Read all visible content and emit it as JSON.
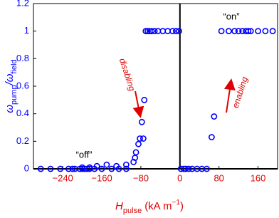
{
  "chart_data": {
    "type": "scatter",
    "xlabel": {
      "main": "H",
      "sub": "pulse",
      "unit": "(kA m",
      "sup": "−1",
      "close": ")"
    },
    "ylabel": {
      "num": "ω",
      "num_sub": "pump",
      "slash": "/ω",
      "den_sub": "field"
    },
    "annotations": [
      "“off”",
      "“on”",
      "disabling",
      "enabling"
    ],
    "x": [
      -285,
      -265,
      -245,
      -228,
      -220,
      -215,
      -205,
      -200,
      -195,
      -190,
      -185,
      -175,
      -160,
      -140,
      -125,
      -110,
      -200,
      -185,
      -170,
      -150,
      -130,
      -110,
      -95,
      -92,
      -90,
      -85,
      -82,
      -78,
      -75,
      -73,
      -70,
      -66,
      -62,
      -58,
      -52,
      -45,
      -35,
      -25,
      -15,
      -8,
      -2,
      2,
      8,
      12,
      18,
      25,
      35,
      45,
      55,
      65,
      70,
      85,
      100,
      112,
      120,
      128,
      135,
      140,
      145,
      160,
      175,
      190
    ],
    "y": [
      0,
      0,
      0,
      0,
      0,
      0,
      0,
      0,
      0,
      0,
      0,
      0,
      0,
      0,
      0,
      0,
      0.01,
      0.01,
      0.02,
      0.03,
      0.02,
      0.03,
      0.05,
      0.08,
      0.12,
      0.18,
      0.22,
      0.34,
      0.22,
      0.5,
      1,
      1,
      1,
      1,
      1,
      1,
      1,
      1,
      1,
      1,
      1,
      0,
      0,
      0,
      0,
      0,
      0,
      0,
      0,
      0.23,
      0.38,
      1,
      1,
      1,
      1,
      1,
      1,
      1,
      1,
      1,
      1,
      1
    ],
    "color": "#0000ff",
    "axis_color_x": "#e00000",
    "axis_color_y": "#0000ff",
    "xlim": [
      -300,
      200
    ],
    "ylim": [
      0,
      1.2
    ],
    "xticks": [
      {
        "value": -240,
        "label": "−240"
      },
      {
        "value": -160,
        "label": "−160"
      },
      {
        "value": -80,
        "label": "−80"
      },
      0,
      80,
      160
    ],
    "yticks": [
      0,
      0.2,
      0.4,
      0.6,
      0.8,
      1,
      1.2
    ],
    "zero_lines": true
  }
}
